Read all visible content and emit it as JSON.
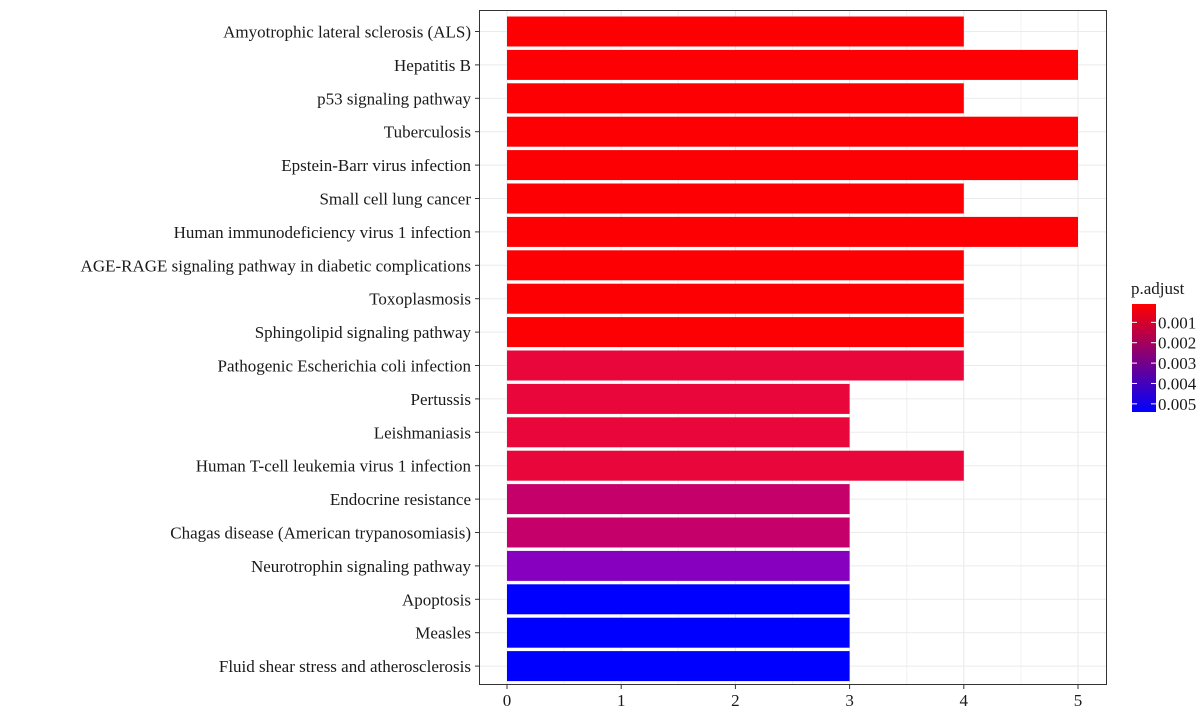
{
  "chart_data": {
    "type": "bar",
    "orientation": "horizontal",
    "categories": [
      "Amyotrophic lateral sclerosis (ALS)",
      "Hepatitis B",
      "p53 signaling pathway",
      "Tuberculosis",
      "Epstein-Barr virus infection",
      "Small cell lung cancer",
      "Human immunodeficiency virus 1 infection",
      "AGE-RAGE signaling pathway in diabetic complications",
      "Toxoplasmosis",
      "Sphingolipid signaling pathway",
      "Pathogenic Escherichia coli infection",
      "Pertussis",
      "Leishmaniasis",
      "Human T-cell leukemia virus 1 infection",
      "Endocrine resistance",
      "Chagas disease (American trypanosomiasis)",
      "Neurotrophin signaling pathway",
      "Apoptosis",
      "Measles",
      "Fluid shear stress and atherosclerosis"
    ],
    "values": [
      4,
      5,
      4,
      5,
      5,
      4,
      5,
      4,
      4,
      4,
      4,
      3,
      3,
      4,
      3,
      3,
      3,
      3,
      3,
      3
    ],
    "p_adjust": [
      0.0001,
      0.0001,
      0.0001,
      0.0001,
      0.0001,
      0.0001,
      0.0001,
      0.0001,
      0.0001,
      0.0001,
      0.0007,
      0.0007,
      0.0007,
      0.0007,
      0.0014,
      0.0014,
      0.0035,
      0.0054,
      0.0054,
      0.0054
    ],
    "bar_colors": [
      "#fd0003",
      "#fd0003",
      "#fd0003",
      "#fd0003",
      "#fd0003",
      "#fd0003",
      "#fd0003",
      "#fd0003",
      "#fd0003",
      "#fd0003",
      "#e8063a",
      "#e8063a",
      "#e8063a",
      "#e8063a",
      "#c5006a",
      "#c5006a",
      "#8700c0",
      "#0000ff",
      "#0000ff",
      "#0000ff"
    ],
    "xlim": [
      0,
      5.25
    ],
    "x_ticks": [
      0,
      1,
      2,
      3,
      4,
      5
    ],
    "x_tick_labels": [
      "0",
      "1",
      "2",
      "3",
      "4",
      "5"
    ],
    "xlabel": "",
    "ylabel": "",
    "title": "",
    "grid": true,
    "legend": {
      "title": "p.adjust",
      "placement": "right",
      "labels": [
        "0.001",
        "0.002",
        "0.003",
        "0.004",
        "0.005"
      ],
      "ticks": [
        0.001,
        0.002,
        0.003,
        0.004,
        0.005
      ],
      "range": [
        0.0001,
        0.0054
      ],
      "gradient": [
        "#ff0000",
        "#0000ff"
      ]
    }
  }
}
